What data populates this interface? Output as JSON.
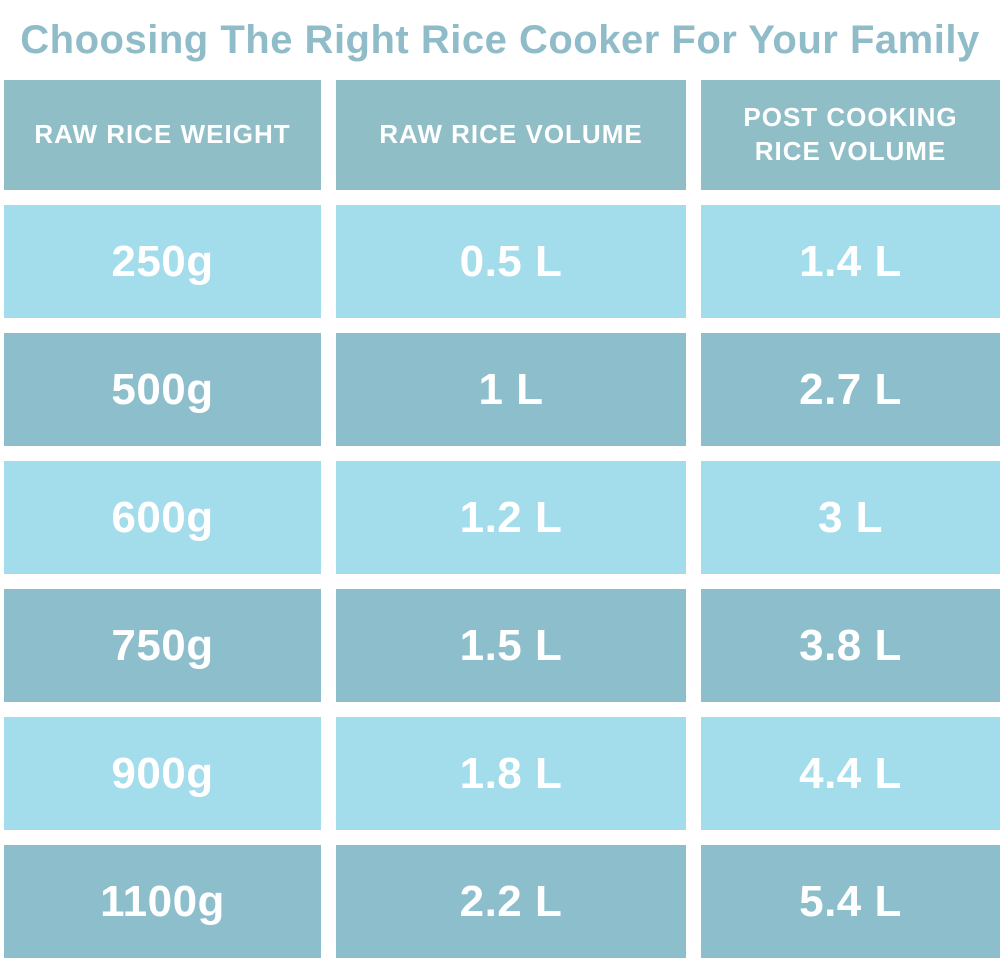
{
  "title": "Choosing The Right Rice Cooker For Your Family",
  "table": {
    "headers": [
      "RAW RICE WEIGHT",
      "RAW RICE VOLUME",
      "POST COOKING RICE VOLUME"
    ],
    "rows": [
      [
        "250g",
        "0.5 L",
        "1.4 L"
      ],
      [
        "500g",
        "1 L",
        "2.7 L"
      ],
      [
        "600g",
        "1.2 L",
        "3 L"
      ],
      [
        "750g",
        "1.5 L",
        "3.8 L"
      ],
      [
        "900g",
        "1.8 L",
        "4.4 L"
      ],
      [
        "1100g",
        "2.2 L",
        "5.4 L"
      ]
    ]
  },
  "colors": {
    "title_color": "#8FBCC8",
    "header_bg": "#8FBEC6",
    "light_row": "#A3DCEB",
    "dark_row": "#8CBECB",
    "cell_text": "#FFFFFF"
  },
  "chart_data": {
    "type": "table",
    "title": "Choosing The Right Rice Cooker For Your Family",
    "columns": [
      "RAW RICE WEIGHT",
      "RAW RICE VOLUME",
      "POST COOKING RICE VOLUME"
    ],
    "rows": [
      {
        "raw_rice_weight_g": 250,
        "raw_rice_volume_l": 0.5,
        "post_cooking_rice_volume_l": 1.4
      },
      {
        "raw_rice_weight_g": 500,
        "raw_rice_volume_l": 1,
        "post_cooking_rice_volume_l": 2.7
      },
      {
        "raw_rice_weight_g": 600,
        "raw_rice_volume_l": 1.2,
        "post_cooking_rice_volume_l": 3
      },
      {
        "raw_rice_weight_g": 750,
        "raw_rice_volume_l": 1.5,
        "post_cooking_rice_volume_l": 3.8
      },
      {
        "raw_rice_weight_g": 900,
        "raw_rice_volume_l": 1.8,
        "post_cooking_rice_volume_l": 4.4
      },
      {
        "raw_rice_weight_g": 1100,
        "raw_rice_volume_l": 2.2,
        "post_cooking_rice_volume_l": 5.4
      }
    ],
    "layout": {
      "row_striping": [
        "light",
        "dark"
      ],
      "header_position": "top",
      "grid": "white gaps between cells"
    }
  }
}
